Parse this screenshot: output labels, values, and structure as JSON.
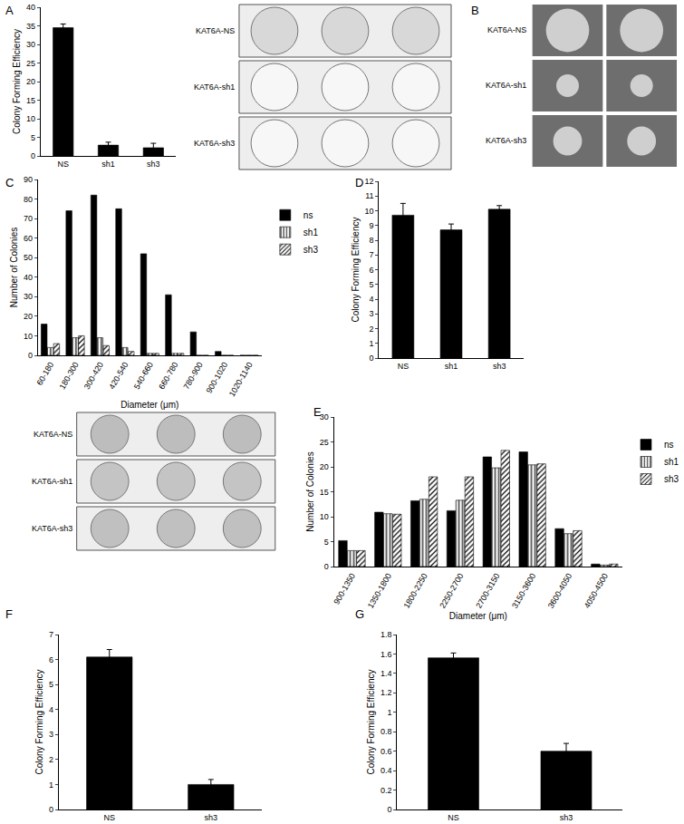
{
  "chart_data": [
    {
      "type": "bar",
      "panel": "A",
      "y_label": "Colony Forming Efficiency",
      "categories": [
        "NS",
        "sh1",
        "sh3"
      ],
      "values": [
        34.5,
        2.9,
        2.2
      ],
      "errors": [
        1.0,
        0.8,
        1.2
      ],
      "color": "#000000",
      "ylim": [
        0,
        40
      ],
      "yticks": [
        0,
        5,
        10,
        15,
        20,
        25,
        30,
        35,
        40
      ],
      "grid": false
    },
    {
      "type": "bar",
      "panel": "C",
      "x_label": "Diameter (μm)",
      "y_label": "Number of Colonies",
      "categories": [
        "60-180",
        "180-300",
        "300-420",
        "420-540",
        "540-660",
        "660-780",
        "780-900",
        "900-1020",
        "1020-1140"
      ],
      "series": [
        {
          "name": "ns",
          "color": "#000000",
          "marker": "solid",
          "values": [
            16,
            74,
            82,
            75,
            52,
            31,
            12,
            2,
            0
          ]
        },
        {
          "name": "sh1",
          "color": "#ffffff",
          "marker": "vertical_stripes",
          "values": [
            4,
            9,
            9,
            4,
            1,
            1,
            0,
            0,
            0
          ]
        },
        {
          "name": "sh3",
          "color": "#ffffff",
          "marker": "diagonal_stripes",
          "values": [
            6,
            10,
            5,
            2,
            1,
            1,
            0,
            0,
            0
          ]
        }
      ],
      "ylim": [
        0,
        90
      ],
      "yticks": [
        0,
        10,
        20,
        30,
        40,
        50,
        60,
        70,
        80,
        90
      ],
      "legend": "right",
      "grid": false
    },
    {
      "type": "bar",
      "panel": "D",
      "y_label": "Colony Forming Efficiency",
      "categories": [
        "NS",
        "sh1",
        "sh3"
      ],
      "values": [
        9.7,
        8.7,
        10.1
      ],
      "errors": [
        0.8,
        0.4,
        0.25
      ],
      "color": "#000000",
      "ylim": [
        0,
        12
      ],
      "yticks": [
        0,
        1,
        2,
        3,
        4,
        5,
        6,
        7,
        8,
        9,
        10,
        11,
        12
      ],
      "grid": false
    },
    {
      "type": "bar",
      "panel": "E",
      "x_label": "Diameter (μm)",
      "y_label": "Number of Colonies",
      "categories": [
        "900-1350",
        "1350-1800",
        "1800-2250",
        "2250-2700",
        "2700-3150",
        "3150-3600",
        "3600-4050",
        "4050-4500"
      ],
      "series": [
        {
          "name": "ns",
          "color": "#000000",
          "marker": "solid",
          "values": [
            5.2,
            10.9,
            13.2,
            11.2,
            22,
            23,
            7.6,
            0.5
          ]
        },
        {
          "name": "sh1",
          "color": "#ffffff",
          "marker": "vertical_stripes",
          "values": [
            3.2,
            10.6,
            13.5,
            13.3,
            19.8,
            20.4,
            6.6,
            0.3
          ]
        },
        {
          "name": "sh3",
          "color": "#ffffff",
          "marker": "diagonal_stripes",
          "values": [
            3.2,
            10.5,
            18,
            18,
            23.3,
            20.6,
            7.2,
            0.5
          ]
        }
      ],
      "ylim": [
        0,
        30
      ],
      "yticks": [
        0,
        5,
        10,
        15,
        20,
        25,
        30
      ],
      "legend": "right",
      "grid": false
    },
    {
      "type": "bar",
      "panel": "F",
      "y_label": "Colony Forming Efficiency",
      "categories": [
        "NS",
        "sh3"
      ],
      "values": [
        6.1,
        1.0
      ],
      "errors": [
        0.3,
        0.2
      ],
      "color": "#000000",
      "ylim": [
        0,
        7
      ],
      "yticks": [
        0,
        1,
        2,
        3,
        4,
        5,
        6,
        7
      ],
      "grid": false
    },
    {
      "type": "bar",
      "panel": "G",
      "y_label": "Colony Forming Efficiency",
      "categories": [
        "NS",
        "sh3"
      ],
      "values": [
        1.56,
        0.6
      ],
      "errors": [
        0.05,
        0.08
      ],
      "color": "#000000",
      "ylim": [
        0,
        1.8
      ],
      "yticks": [
        0,
        0.2,
        0.4,
        0.6,
        0.8,
        1,
        1.2,
        1.4,
        1.6,
        1.8
      ],
      "grid": false
    }
  ],
  "images": [
    {
      "rows": [
        "KAT6A-NS",
        "KAT6A-sh1",
        "KAT6A-sh3"
      ]
    },
    {
      "panel": "B",
      "rows": [
        "KAT6A-NS",
        "KAT6A-sh1",
        "KAT6A-sh3"
      ]
    },
    {
      "rows": [
        "KAT6A-NS",
        "KAT6A-sh1",
        "KAT6A-sh3"
      ]
    }
  ]
}
